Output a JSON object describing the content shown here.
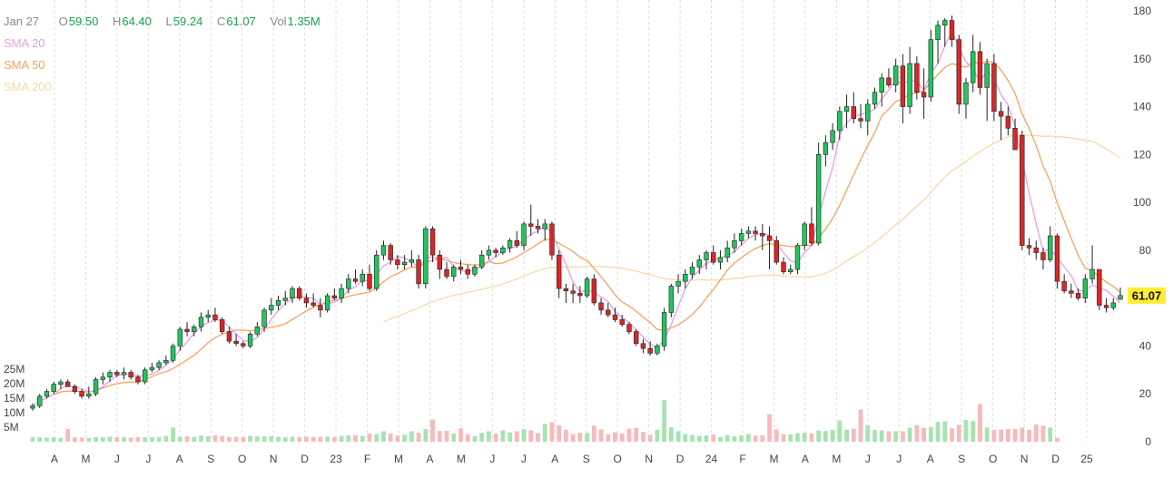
{
  "legend": {
    "date": "Jan 27",
    "open_label": "O",
    "open": "59.50",
    "high_label": "H",
    "high": "64.40",
    "low_label": "L",
    "low": "59.24",
    "close_label": "C",
    "close": "61.07",
    "vol_label": "Vol",
    "vol": "1.35M",
    "sma20": "SMA 20",
    "sma50": "SMA 50",
    "sma200": "SMA 200"
  },
  "colors": {
    "up": "#22c55e",
    "down": "#dc2626",
    "vol_up": "#a7e3b0",
    "vol_down": "#f8b9bd",
    "sma20": "#e8a0e4",
    "sma50": "#f7a25e",
    "sma200": "#f8d9a8",
    "grid": "#dddddd",
    "last_price_bg": "#ffee33"
  },
  "chart_data": {
    "type": "candlestick",
    "last_price": "61.07",
    "y_axis": {
      "ticks": [
        "180",
        "160",
        "140",
        "120",
        "100",
        "80",
        "60",
        "40",
        "20",
        "0"
      ],
      "range": [
        0,
        180
      ]
    },
    "volume_axis": {
      "ticks": [
        "25M",
        "20M",
        "15M",
        "10M",
        "5M"
      ]
    },
    "x_axis": {
      "ticks": [
        "A",
        "M",
        "J",
        "J",
        "A",
        "S",
        "O",
        "N",
        "D",
        "23",
        "F",
        "M",
        "A",
        "M",
        "J",
        "J",
        "A",
        "S",
        "O",
        "N",
        "D",
        "24",
        "F",
        "M",
        "A",
        "M",
        "J",
        "J",
        "A",
        "S",
        "O",
        "N",
        "D",
        "25"
      ]
    },
    "candles": [
      [
        14,
        16,
        13,
        15
      ],
      [
        15,
        20,
        14,
        19
      ],
      [
        19,
        22,
        18,
        21
      ],
      [
        21,
        25,
        20,
        24
      ],
      [
        24,
        26,
        22,
        25
      ],
      [
        25,
        26,
        23,
        23
      ],
      [
        23,
        24,
        20,
        21
      ],
      [
        21,
        22,
        18,
        19
      ],
      [
        19,
        23,
        18,
        20
      ],
      [
        20,
        27,
        19,
        26
      ],
      [
        26,
        29,
        24,
        27
      ],
      [
        27,
        30,
        25,
        29
      ],
      [
        29,
        30,
        27,
        28
      ],
      [
        28,
        31,
        26,
        29
      ],
      [
        29,
        30,
        26,
        27
      ],
      [
        27,
        28,
        24,
        25
      ],
      [
        25,
        31,
        24,
        30
      ],
      [
        30,
        33,
        29,
        31
      ],
      [
        31,
        34,
        30,
        33
      ],
      [
        33,
        36,
        32,
        34
      ],
      [
        34,
        41,
        33,
        40
      ],
      [
        40,
        48,
        38,
        47
      ],
      [
        47,
        50,
        44,
        46
      ],
      [
        46,
        49,
        44,
        48
      ],
      [
        48,
        54,
        46,
        52
      ],
      [
        52,
        55,
        50,
        53
      ],
      [
        53,
        56,
        50,
        51
      ],
      [
        51,
        52,
        45,
        46
      ],
      [
        46,
        48,
        41,
        42
      ],
      [
        42,
        45,
        40,
        41
      ],
      [
        41,
        42,
        39,
        40
      ],
      [
        40,
        46,
        39,
        45
      ],
      [
        45,
        50,
        44,
        48
      ],
      [
        48,
        56,
        46,
        55
      ],
      [
        55,
        60,
        53,
        57
      ],
      [
        57,
        61,
        55,
        59
      ],
      [
        59,
        63,
        57,
        60
      ],
      [
        60,
        65,
        58,
        64
      ],
      [
        64,
        65,
        59,
        60
      ],
      [
        60,
        62,
        56,
        58
      ],
      [
        58,
        62,
        56,
        57
      ],
      [
        57,
        60,
        52,
        55
      ],
      [
        55,
        62,
        54,
        61
      ],
      [
        61,
        64,
        59,
        60
      ],
      [
        60,
        66,
        58,
        64
      ],
      [
        64,
        70,
        62,
        68
      ],
      [
        68,
        72,
        66,
        67
      ],
      [
        67,
        72,
        65,
        70
      ],
      [
        70,
        74,
        63,
        64
      ],
      [
        64,
        80,
        63,
        78
      ],
      [
        78,
        84,
        76,
        82
      ],
      [
        82,
        83,
        74,
        76
      ],
      [
        76,
        78,
        72,
        74
      ],
      [
        74,
        78,
        72,
        75
      ],
      [
        75,
        80,
        73,
        76
      ],
      [
        76,
        78,
        64,
        66
      ],
      [
        66,
        90,
        64,
        89
      ],
      [
        89,
        90,
        75,
        78
      ],
      [
        78,
        80,
        68,
        72
      ],
      [
        72,
        75,
        68,
        69
      ],
      [
        69,
        74,
        67,
        73
      ],
      [
        73,
        76,
        70,
        72
      ],
      [
        72,
        74,
        68,
        70
      ],
      [
        70,
        74,
        69,
        73
      ],
      [
        73,
        80,
        72,
        78
      ],
      [
        78,
        82,
        76,
        80
      ],
      [
        80,
        81,
        77,
        79
      ],
      [
        79,
        82,
        78,
        81
      ],
      [
        81,
        85,
        79,
        84
      ],
      [
        84,
        88,
        81,
        82
      ],
      [
        82,
        92,
        80,
        91
      ],
      [
        91,
        99,
        86,
        90
      ],
      [
        90,
        93,
        87,
        89
      ],
      [
        89,
        93,
        84,
        91
      ],
      [
        91,
        92,
        76,
        78
      ],
      [
        78,
        80,
        60,
        64
      ],
      [
        64,
        66,
        58,
        63
      ],
      [
        63,
        66,
        58,
        62
      ],
      [
        62,
        65,
        58,
        61
      ],
      [
        61,
        69,
        60,
        68
      ],
      [
        68,
        70,
        57,
        58
      ],
      [
        58,
        60,
        53,
        55
      ],
      [
        55,
        58,
        52,
        53
      ],
      [
        53,
        56,
        50,
        51
      ],
      [
        51,
        53,
        48,
        49
      ],
      [
        49,
        50,
        45,
        46
      ],
      [
        46,
        47,
        40,
        41
      ],
      [
        41,
        43,
        37,
        39
      ],
      [
        39,
        42,
        36,
        37
      ],
      [
        37,
        41,
        36,
        40
      ],
      [
        40,
        56,
        38,
        54
      ],
      [
        54,
        66,
        52,
        65
      ],
      [
        65,
        70,
        62,
        67
      ],
      [
        67,
        72,
        64,
        70
      ],
      [
        70,
        75,
        68,
        73
      ],
      [
        73,
        78,
        70,
        76
      ],
      [
        76,
        80,
        72,
        79
      ],
      [
        79,
        82,
        74,
        75
      ],
      [
        75,
        80,
        72,
        77
      ],
      [
        77,
        84,
        75,
        81
      ],
      [
        81,
        87,
        79,
        84
      ],
      [
        84,
        89,
        82,
        87
      ],
      [
        87,
        90,
        85,
        88
      ],
      [
        88,
        90,
        84,
        87
      ],
      [
        87,
        91,
        80,
        86
      ],
      [
        86,
        90,
        72,
        84
      ],
      [
        84,
        86,
        74,
        75
      ],
      [
        75,
        77,
        70,
        71
      ],
      [
        71,
        74,
        70,
        72
      ],
      [
        72,
        83,
        70,
        82
      ],
      [
        82,
        92,
        80,
        91
      ],
      [
        91,
        98,
        82,
        83
      ],
      [
        83,
        125,
        82,
        120
      ],
      [
        120,
        128,
        115,
        125
      ],
      [
        125,
        133,
        122,
        130
      ],
      [
        130,
        140,
        126,
        138
      ],
      [
        138,
        145,
        131,
        140
      ],
      [
        140,
        146,
        133,
        135
      ],
      [
        135,
        141,
        131,
        134
      ],
      [
        134,
        143,
        128,
        141
      ],
      [
        141,
        148,
        139,
        146
      ],
      [
        146,
        154,
        140,
        152
      ],
      [
        152,
        156,
        148,
        149
      ],
      [
        149,
        160,
        146,
        157
      ],
      [
        157,
        162,
        133,
        140
      ],
      [
        140,
        165,
        137,
        158
      ],
      [
        158,
        161,
        143,
        146
      ],
      [
        146,
        156,
        135,
        144
      ],
      [
        144,
        172,
        142,
        168
      ],
      [
        168,
        176,
        158,
        174
      ],
      [
        174,
        177,
        165,
        176
      ],
      [
        176,
        178,
        165,
        168
      ],
      [
        168,
        170,
        137,
        141
      ],
      [
        141,
        152,
        135,
        150
      ],
      [
        150,
        170,
        146,
        163
      ],
      [
        163,
        167,
        145,
        148
      ],
      [
        148,
        160,
        134,
        158
      ],
      [
        158,
        162,
        134,
        138
      ],
      [
        138,
        142,
        126,
        136
      ],
      [
        136,
        140,
        128,
        131
      ],
      [
        131,
        135,
        123,
        122
      ],
      [
        128,
        130,
        80,
        82
      ],
      [
        82,
        85,
        78,
        81
      ],
      [
        81,
        84,
        76,
        79
      ],
      [
        79,
        81,
        72,
        76
      ],
      [
        76,
        90,
        75,
        86
      ],
      [
        86,
        87,
        64,
        67
      ],
      [
        67,
        70,
        62,
        63
      ],
      [
        63,
        66,
        60,
        62
      ],
      [
        62,
        64,
        59,
        60
      ],
      [
        60,
        70,
        58,
        68
      ],
      [
        68,
        82,
        66,
        72
      ],
      [
        72,
        72,
        55,
        57
      ],
      [
        57,
        60,
        54,
        56
      ],
      [
        56,
        60,
        55,
        58
      ],
      [
        59.5,
        64.4,
        59.24,
        61.07
      ]
    ],
    "volume_millions": [
      1.6,
      1.5,
      1.4,
      1.5,
      1.3,
      4.4,
      1.5,
      1.4,
      1.3,
      1.6,
      1.5,
      1.7,
      1.5,
      1.6,
      1.4,
      1.6,
      1.5,
      1.5,
      1.6,
      2.0,
      4.9,
      1.6,
      1.8,
      1.7,
      2.1,
      1.9,
      2.2,
      2.0,
      1.6,
      1.7,
      1.6,
      2.0,
      1.8,
      1.8,
      1.9,
      1.7,
      1.5,
      1.7,
      1.6,
      1.7,
      1.6,
      1.7,
      1.8,
      1.6,
      2.0,
      2.2,
      2.2,
      2.0,
      2.8,
      2.6,
      3.6,
      2.8,
      2.1,
      2.4,
      3.6,
      3.1,
      4.4,
      7.6,
      3.7,
      3.8,
      2.8,
      4.6,
      2.6,
      1.9,
      3.1,
      3.6,
      2.8,
      3.9,
      3.2,
      3.6,
      4.3,
      3.9,
      3.0,
      6.1,
      6.7,
      5.7,
      4.1,
      2.6,
      3.1,
      3.0,
      5.6,
      4.2,
      2.6,
      3.2,
      2.8,
      4.5,
      4.8,
      3.4,
      2.4,
      4.1,
      14.3,
      5.0,
      3.6,
      2.7,
      2.3,
      2.0,
      2.2,
      2.5,
      1.6,
      2.3,
      1.9,
      2.2,
      2.6,
      2.1,
      2.2,
      9.5,
      4.2,
      2.6,
      2.5,
      2.9,
      3.1,
      2.9,
      3.8,
      3.7,
      4.1,
      7.3,
      4.1,
      4.5,
      11.1,
      5.7,
      4.1,
      3.9,
      3.6,
      3.6,
      3.6,
      4.8,
      5.8,
      4.8,
      5.0,
      6.8,
      7.0,
      4.6,
      5.8,
      7.5,
      7.1,
      13.0,
      4.9,
      4.1,
      4.2,
      4.4,
      4.4,
      4.9,
      4.1,
      6.0,
      5.5,
      4.9,
      1.35
    ]
  }
}
